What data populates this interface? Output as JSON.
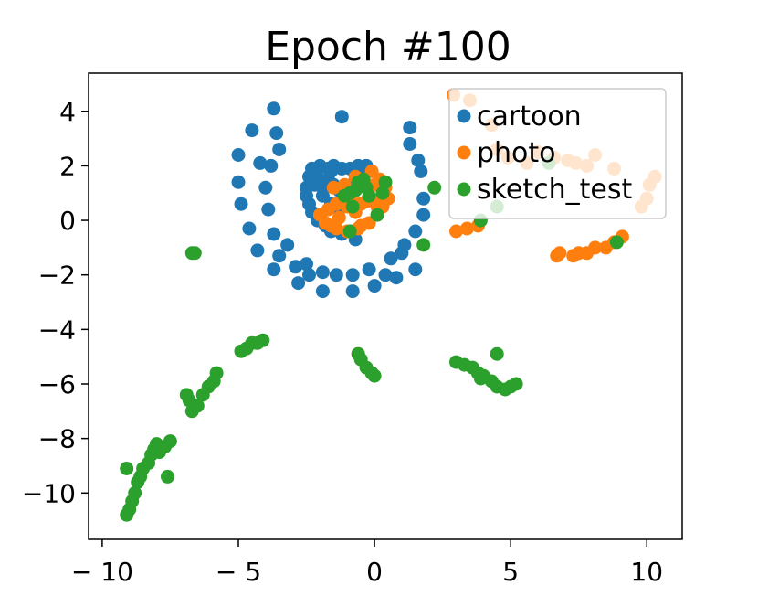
{
  "chart_data": {
    "type": "scatter",
    "title": "Epoch #100",
    "xlabel": "",
    "ylabel": "",
    "xlim": [
      -10.5,
      11.3
    ],
    "ylim": [
      -11.7,
      5.4
    ],
    "xticks": [
      -10,
      -5,
      0,
      5,
      10
    ],
    "xtick_labels": [
      "− 10",
      "− 5",
      "0",
      "5",
      "10"
    ],
    "yticks": [
      4,
      2,
      0,
      -2,
      -4,
      -6,
      -8,
      -10
    ],
    "ytick_labels": [
      "4",
      "2",
      "0",
      "−2",
      "−4",
      "−6",
      "−8",
      "−10"
    ],
    "grid": false,
    "legend_position": "top-right",
    "series": [
      {
        "name": "cartoon",
        "color": "#1f77b4",
        "points": [
          [
            -4.5,
            3.3
          ],
          [
            -3.7,
            4.1
          ],
          [
            -3.6,
            3.2
          ],
          [
            -3.5,
            2.6
          ],
          [
            -5.0,
            2.4
          ],
          [
            -4.2,
            2.1
          ],
          [
            -3.8,
            2.0
          ],
          [
            -5.0,
            1.4
          ],
          [
            -4.0,
            1.2
          ],
          [
            -4.9,
            0.6
          ],
          [
            -3.9,
            0.4
          ],
          [
            -4.6,
            -0.3
          ],
          [
            -3.7,
            -0.5
          ],
          [
            -4.3,
            -1.1
          ],
          [
            -3.2,
            -0.9
          ],
          [
            -3.5,
            -1.3
          ],
          [
            -2.9,
            -1.7
          ],
          [
            -3.7,
            -1.8
          ],
          [
            -2.5,
            -1.6
          ],
          [
            -2.8,
            -2.3
          ],
          [
            -2.4,
            -2.0
          ],
          [
            -1.9,
            -1.9
          ],
          [
            -1.4,
            -2.0
          ],
          [
            -1.9,
            -2.6
          ],
          [
            -0.8,
            -2.0
          ],
          [
            -0.8,
            -2.6
          ],
          [
            -0.2,
            -1.8
          ],
          [
            0.0,
            -2.4
          ],
          [
            0.4,
            -2.0
          ],
          [
            0.8,
            -2.1
          ],
          [
            0.6,
            -1.4
          ],
          [
            1.0,
            -1.2
          ],
          [
            1.5,
            -1.8
          ],
          [
            1.1,
            -0.9
          ],
          [
            1.5,
            -0.4
          ],
          [
            1.8,
            0.2
          ],
          [
            1.8,
            0.8
          ],
          [
            1.7,
            1.8
          ],
          [
            1.6,
            2.2
          ],
          [
            1.3,
            2.8
          ],
          [
            1.3,
            3.4
          ],
          [
            -1.2,
            3.8
          ],
          [
            -2.5,
            1.2
          ],
          [
            -2.4,
            1.6
          ],
          [
            -2.3,
            1.9
          ],
          [
            -2.0,
            2.0
          ],
          [
            -1.7,
            1.9
          ],
          [
            -1.5,
            2.0
          ],
          [
            -1.2,
            1.9
          ],
          [
            -0.9,
            1.9
          ],
          [
            -0.6,
            2.0
          ],
          [
            -0.3,
            2.0
          ],
          [
            -2.5,
            0.9
          ],
          [
            -2.4,
            0.6
          ],
          [
            -2.3,
            0.3
          ],
          [
            -2.1,
            0.0
          ],
          [
            -1.8,
            -0.2
          ],
          [
            -1.6,
            -0.4
          ],
          [
            -1.2,
            -0.5
          ],
          [
            -0.9,
            -0.4
          ],
          [
            -0.7,
            -0.7
          ],
          [
            -2.1,
            1.6
          ],
          [
            -1.9,
            1.2
          ],
          [
            -1.7,
            1.5
          ],
          [
            -1.5,
            1.3
          ],
          [
            -1.3,
            1.1
          ],
          [
            -1.9,
            0.9
          ],
          [
            -1.6,
            0.6
          ],
          [
            -1.3,
            0.4
          ],
          [
            -1.1,
            0.6
          ],
          [
            -0.9,
            1.2
          ],
          [
            -0.7,
            1.5
          ],
          [
            -0.5,
            1.7
          ],
          [
            -1.6,
            1.8
          ],
          [
            -2.2,
            1.3
          ]
        ]
      },
      {
        "name": "photo",
        "color": "#ff7f0e",
        "points": [
          [
            -0.1,
            1.8
          ],
          [
            0.2,
            1.5
          ],
          [
            0.4,
            1.2
          ],
          [
            0.5,
            0.8
          ],
          [
            0.3,
            0.5
          ],
          [
            0.1,
            0.2
          ],
          [
            -0.2,
            -0.1
          ],
          [
            -0.6,
            -0.3
          ],
          [
            -1.0,
            -0.4
          ],
          [
            -1.4,
            -0.3
          ],
          [
            -1.8,
            -0.1
          ],
          [
            -2.0,
            0.2
          ],
          [
            -1.7,
            0.4
          ],
          [
            -1.4,
            0.6
          ],
          [
            -1.0,
            0.5
          ],
          [
            -0.7,
            0.3
          ],
          [
            -0.5,
            0.6
          ],
          [
            -0.8,
            1.0
          ],
          [
            -1.1,
            1.3
          ],
          [
            -1.5,
            1.2
          ],
          [
            -0.7,
            1.6
          ],
          [
            -0.4,
            1.4
          ],
          [
            0.0,
            1.3
          ],
          [
            0.2,
            0.8
          ],
          [
            -0.3,
            0.7
          ],
          [
            -0.9,
            0.8
          ],
          [
            -1.3,
            0.1
          ],
          [
            -1.6,
            -0.2
          ],
          [
            -0.5,
            -0.2
          ],
          [
            0.1,
            0.5
          ],
          [
            -0.6,
            -4.9
          ],
          [
            2.9,
            4.6
          ],
          [
            3.5,
            4.4
          ],
          [
            4.3,
            3.5
          ],
          [
            4.5,
            2.6
          ],
          [
            4.9,
            2.3
          ],
          [
            5.6,
            2.1
          ],
          [
            6.0,
            2.5
          ],
          [
            6.6,
            2.3
          ],
          [
            7.1,
            2.2
          ],
          [
            7.4,
            2.1
          ],
          [
            7.8,
            2.0
          ],
          [
            8.1,
            2.4
          ],
          [
            8.8,
            1.9
          ],
          [
            9.8,
            0.5
          ],
          [
            10.0,
            0.8
          ],
          [
            10.1,
            1.3
          ],
          [
            10.3,
            1.6
          ],
          [
            3.0,
            -0.4
          ],
          [
            3.4,
            -0.3
          ],
          [
            3.8,
            -0.2
          ],
          [
            6.7,
            -1.3
          ],
          [
            6.8,
            -1.2
          ],
          [
            7.3,
            -1.3
          ],
          [
            7.5,
            -1.2
          ],
          [
            7.8,
            -1.2
          ],
          [
            8.1,
            -1.0
          ],
          [
            8.5,
            -1.0
          ],
          [
            8.8,
            -0.8
          ],
          [
            9.1,
            -0.6
          ]
        ]
      },
      {
        "name": "sketch_test",
        "color": "#2ca02c",
        "points": [
          [
            -6.7,
            -1.2
          ],
          [
            -6.6,
            -1.2
          ],
          [
            -9.1,
            -9.1
          ],
          [
            -9.1,
            -10.8
          ],
          [
            -9.0,
            -10.6
          ],
          [
            -8.9,
            -10.3
          ],
          [
            -8.8,
            -10.0
          ],
          [
            -8.7,
            -9.6
          ],
          [
            -8.6,
            -9.4
          ],
          [
            -8.5,
            -9.1
          ],
          [
            -8.3,
            -8.9
          ],
          [
            -8.2,
            -8.6
          ],
          [
            -8.1,
            -8.4
          ],
          [
            -7.9,
            -8.5
          ],
          [
            -7.7,
            -8.3
          ],
          [
            -7.5,
            -8.1
          ],
          [
            -7.6,
            -9.4
          ],
          [
            -8.0,
            -8.2
          ],
          [
            -6.9,
            -6.4
          ],
          [
            -6.8,
            -6.6
          ],
          [
            -6.7,
            -7.0
          ],
          [
            -6.5,
            -6.8
          ],
          [
            -6.3,
            -6.4
          ],
          [
            -6.1,
            -6.1
          ],
          [
            -5.9,
            -5.9
          ],
          [
            -5.8,
            -5.6
          ],
          [
            -4.9,
            -4.8
          ],
          [
            -4.7,
            -4.7
          ],
          [
            -4.5,
            -4.5
          ],
          [
            -4.3,
            -4.5
          ],
          [
            -4.1,
            -4.4
          ],
          [
            -0.6,
            -4.9
          ],
          [
            -0.5,
            -5.1
          ],
          [
            -0.3,
            -5.4
          ],
          [
            -0.1,
            -5.6
          ],
          [
            0.0,
            -5.7
          ],
          [
            3.0,
            -5.2
          ],
          [
            3.3,
            -5.3
          ],
          [
            3.6,
            -5.4
          ],
          [
            3.8,
            -5.6
          ],
          [
            4.0,
            -5.7
          ],
          [
            4.3,
            -5.9
          ],
          [
            4.5,
            -6.1
          ],
          [
            4.8,
            -6.2
          ],
          [
            5.0,
            -6.1
          ],
          [
            5.2,
            -6.0
          ],
          [
            4.5,
            -4.9
          ],
          [
            3.9,
            -5.8
          ],
          [
            -0.9,
            1.0
          ],
          [
            -0.7,
            1.1
          ],
          [
            -0.6,
            1.4
          ],
          [
            -0.4,
            1.5
          ],
          [
            -0.3,
            1.2
          ],
          [
            -0.2,
            0.9
          ],
          [
            -1.1,
            0.9
          ],
          [
            -0.8,
            0.5
          ],
          [
            0.1,
            0.2
          ],
          [
            0.4,
            1.4
          ],
          [
            0.3,
            1.0
          ],
          [
            -0.9,
            -0.4
          ],
          [
            1.8,
            -0.9
          ],
          [
            2.2,
            1.2
          ],
          [
            3.9,
            0.0
          ],
          [
            4.5,
            0.5
          ],
          [
            8.9,
            -0.8
          ],
          [
            6.4,
            2.1
          ]
        ]
      }
    ]
  }
}
